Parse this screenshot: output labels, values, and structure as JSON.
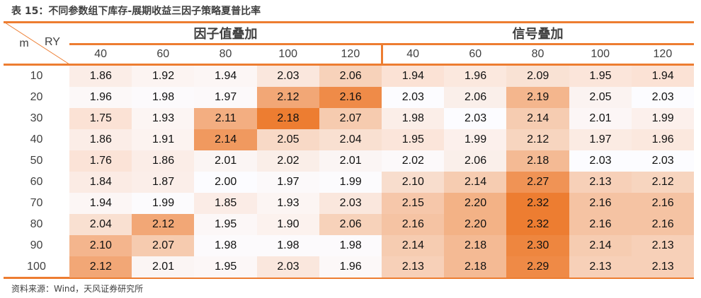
{
  "title": "表 15：不同参数组下库存-展期收益三因子策略夏普比率",
  "source": "资料来源：Wind，天风证券研究所",
  "chart_data": {
    "type": "heatmap",
    "row_header": "m",
    "col_header": "RY",
    "groups": [
      {
        "label": "因子值叠加",
        "columns": [
          "40",
          "60",
          "80",
          "100",
          "120"
        ]
      },
      {
        "label": "信号叠加",
        "columns": [
          "40",
          "60",
          "80",
          "100",
          "120"
        ]
      }
    ],
    "rows": [
      "10",
      "20",
      "30",
      "40",
      "50",
      "60",
      "70",
      "80",
      "90",
      "100"
    ],
    "values": [
      [
        [
          1.86,
          1.92,
          1.94,
          2.03,
          2.06
        ],
        [
          1.94,
          1.96,
          2.09,
          1.95,
          1.94
        ]
      ],
      [
        [
          1.96,
          1.98,
          1.97,
          2.12,
          2.16
        ],
        [
          2.03,
          2.06,
          2.19,
          2.05,
          2.03
        ]
      ],
      [
        [
          1.75,
          1.93,
          2.11,
          2.18,
          2.07
        ],
        [
          1.98,
          2.03,
          2.14,
          2.01,
          1.99
        ]
      ],
      [
        [
          1.86,
          1.91,
          2.14,
          2.05,
          2.04
        ],
        [
          1.95,
          1.99,
          2.12,
          1.97,
          1.96
        ]
      ],
      [
        [
          1.76,
          1.86,
          2.01,
          2.02,
          2.01
        ],
        [
          2.02,
          2.06,
          2.18,
          2.03,
          2.03
        ]
      ],
      [
        [
          1.84,
          1.87,
          2.0,
          1.97,
          1.99
        ],
        [
          2.1,
          2.14,
          2.27,
          2.13,
          2.12
        ]
      ],
      [
        [
          1.94,
          1.99,
          1.85,
          1.93,
          2.03
        ],
        [
          2.15,
          2.2,
          2.32,
          2.16,
          2.16
        ]
      ],
      [
        [
          2.04,
          2.12,
          1.95,
          1.9,
          2.06
        ],
        [
          2.16,
          2.2,
          2.32,
          2.16,
          2.16
        ]
      ],
      [
        [
          2.1,
          2.07,
          1.98,
          1.98,
          1.98
        ],
        [
          2.14,
          2.18,
          2.3,
          2.14,
          2.13
        ]
      ],
      [
        [
          2.12,
          2.01,
          1.95,
          2.03,
          1.96
        ],
        [
          2.13,
          2.18,
          2.29,
          2.13,
          2.13
        ]
      ]
    ],
    "color_scale": {
      "low": "#fbe2d5",
      "mid": "#fcfcff",
      "high": "#ed7d31"
    },
    "accent": "#ed7d31"
  }
}
